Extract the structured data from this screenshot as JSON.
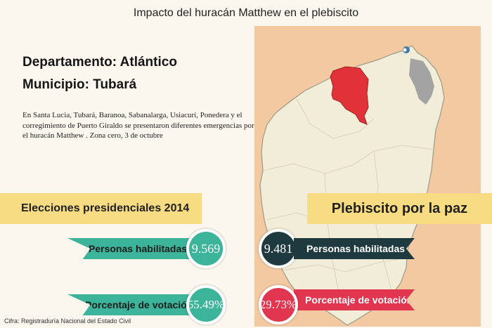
{
  "title": "Impacto del huracán Matthew en el plebiscito",
  "departamento": "Departamento: Atlántico",
  "municipio": "Municipio: Tubará",
  "description": "En Santa Lucia, Tubará, Baranoa, Sabanalarga, Usiacurí, Ponedera y el corregimiento de Puerto Giraldo se presentaron diferentes emergencias por el huracán Matthew . Zona cero, 3 de octubre",
  "left_section": {
    "heading": "Elecciones presidenciales 2014",
    "habilitadas_label": "Personas habilitadas",
    "habilitadas_value": "9.569",
    "votacion_label": "Porcentaje de votación",
    "votacion_value": "55.49%"
  },
  "right_section": {
    "heading": "Plebiscito por la paz",
    "habilitadas_label": "Personas habilitadas",
    "habilitadas_value": "9.481",
    "votacion_label": "Porcentaje de votación",
    "votacion_value": "29.73%"
  },
  "source": "Cifra: Registraduría Nacional del Estado Civil",
  "colors": {
    "teal": "#3cb49a",
    "dark_teal": "#1e3a3f",
    "red": "#e23650",
    "banner": "#f8dc83",
    "map_highlight": "#e03238",
    "map_background": "#f3c9a2"
  }
}
